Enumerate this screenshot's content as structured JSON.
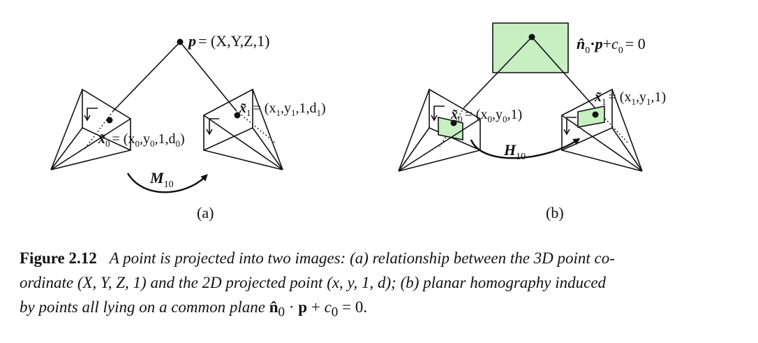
{
  "panel_a": {
    "point_label": "= (X,Y,Z,1)",
    "point_symbol": "p",
    "x0_label": "= (x",
    "x0_sub": "0",
    "x0_rest": ",y",
    "x0_rest_sub": "0",
    "x0_tail": ",1,d",
    "x0_tail_sub": "0",
    "x0_close": ")",
    "x1_label": "= (x",
    "x1_sub": "1",
    "x1_rest": ",y",
    "x1_rest_sub": "1",
    "x1_tail": ",1,d",
    "x1_tail_sub": "1",
    "x1_close": ")",
    "motion_symbol": "M",
    "motion_sub": "10",
    "panel_letter": "(a)"
  },
  "panel_b": {
    "plane_eq_n": "n",
    "plane_eq_n_sub": "0",
    "plane_eq_mid": "·",
    "plane_eq_p": "p",
    "plane_eq_plus": "+",
    "plane_eq_c": "c",
    "plane_eq_c_sub": "0",
    "plane_eq_end": "= 0",
    "x0_label": "= (x",
    "x0_sub": "0",
    "x0_rest": ",y",
    "x0_rest_sub": "0",
    "x0_close": ",1)",
    "x1_label": "= (x",
    "x1_sub": "1",
    "x1_rest": ",y",
    "x1_rest_sub": "1",
    "x1_close": ",1)",
    "homography_symbol": "H",
    "homography_sub": "10",
    "panel_letter": "(b)"
  },
  "caption": {
    "label": "Figure 2.12",
    "line1": "A point is projected into two images: (a) relationship between the 3D point co-",
    "line2_a": "ordinate ",
    "coord3d": "(X, Y, Z, 1)",
    "line2_b": " and the 2D projected point ",
    "coord2d": "(x, y, 1, d)",
    "line2_c": "; (b) planar homography induced",
    "line3_a": "by points all lying on a common plane ",
    "plane_n": "n̂",
    "plane_n_sub": "0",
    "plane_dot": " · ",
    "plane_p": "p",
    "plane_plus": " + ",
    "plane_c": "c",
    "plane_c_sub": "0",
    "plane_eq": " = 0."
  }
}
